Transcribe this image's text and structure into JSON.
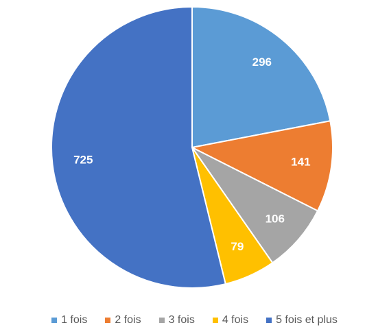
{
  "chart_data": {
    "type": "pie",
    "categories": [
      "1 fois",
      "2 fois",
      "3 fois",
      "4 fois",
      "5 fois et plus"
    ],
    "values": [
      296,
      141,
      106,
      79,
      725
    ],
    "colors": [
      "#5b9bd5",
      "#ed7d31",
      "#a5a5a5",
      "#ffc000",
      "#4472c4"
    ],
    "legend": "bottom"
  }
}
